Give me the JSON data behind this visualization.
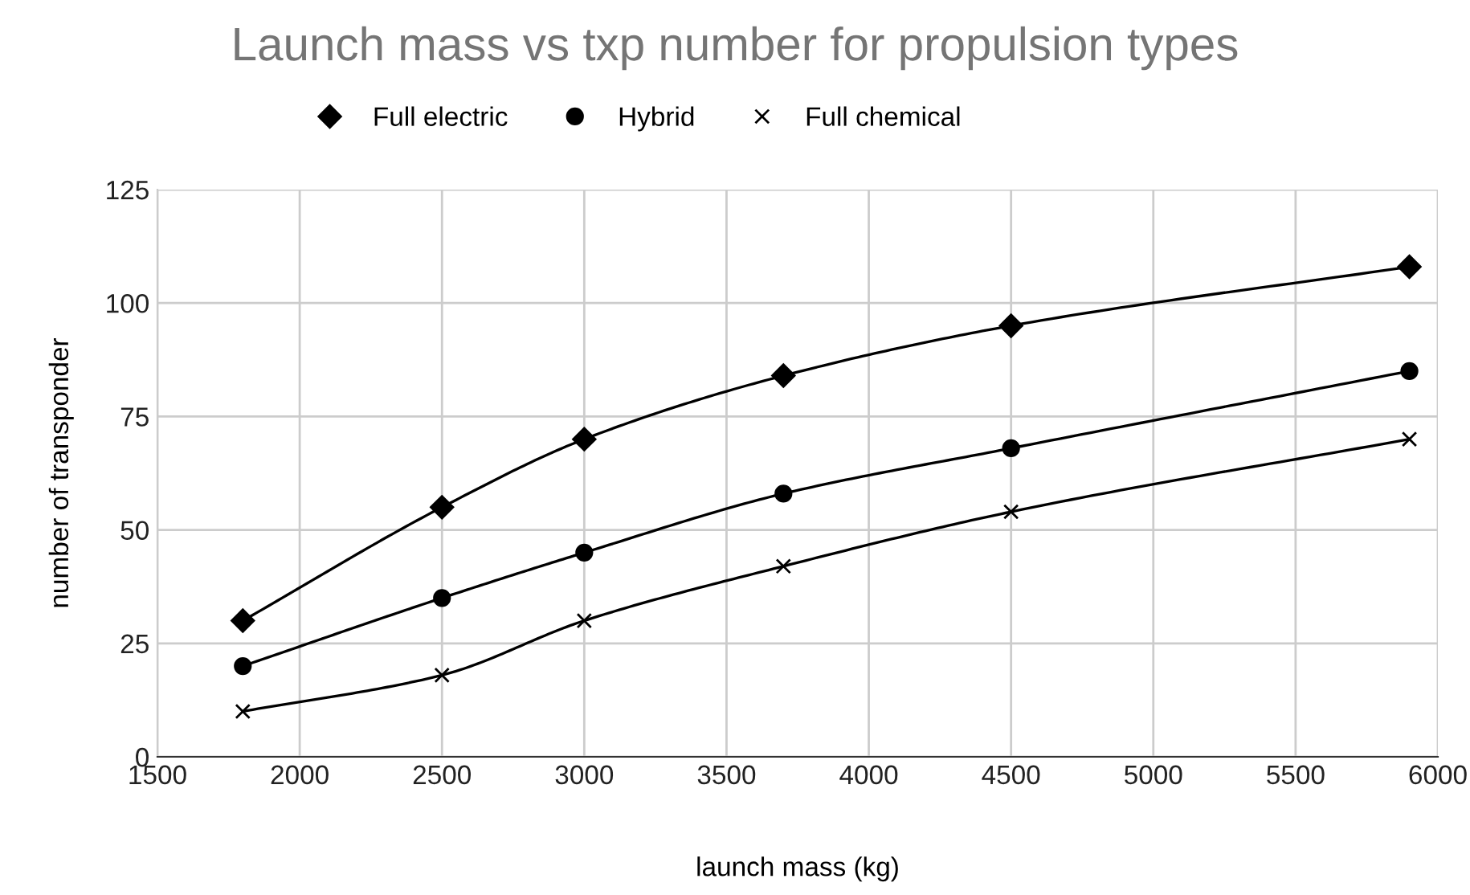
{
  "chart_data": {
    "type": "line",
    "title": "Launch mass vs txp number for propulsion types",
    "xlabel": "launch mass (kg)",
    "ylabel": "number of transponder",
    "x": [
      1800,
      2500,
      3000,
      3700,
      4500,
      5900
    ],
    "series": [
      {
        "name": "Full electric",
        "color": "#000000",
        "marker": "diamond",
        "values": [
          30,
          55,
          70,
          84,
          95,
          108
        ]
      },
      {
        "name": "Hybrid",
        "color": "#000000",
        "marker": "circle",
        "values": [
          20,
          35,
          45,
          58,
          68,
          85
        ]
      },
      {
        "name": "Full chemical",
        "color": "#000000",
        "marker": "cross",
        "values": [
          10,
          18,
          30,
          42,
          54,
          70
        ]
      }
    ],
    "xlim": [
      1500,
      6000
    ],
    "xticks": [
      1500,
      2000,
      2500,
      3000,
      3500,
      4000,
      4500,
      5000,
      5500,
      6000
    ],
    "ylim": [
      0,
      125
    ],
    "yticks": [
      0,
      25,
      50,
      75,
      100,
      125
    ],
    "grid": true,
    "legend": "top",
    "line_style": "solid"
  }
}
